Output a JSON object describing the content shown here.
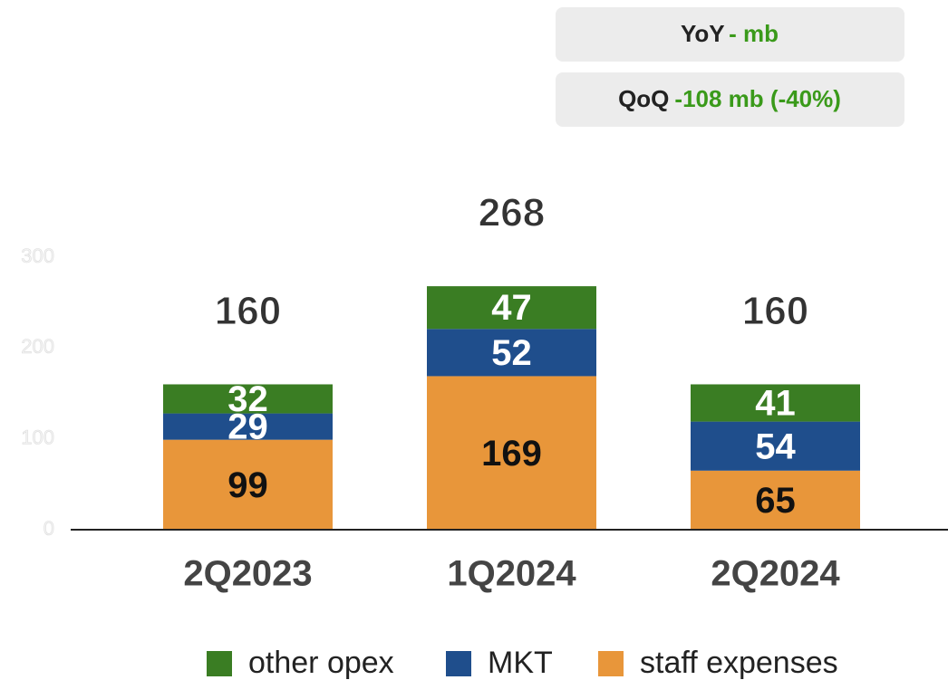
{
  "chart_data": {
    "type": "stacked_bar",
    "annotations": [
      {
        "label": "YoY",
        "text": "-  mb"
      },
      {
        "label": "QoQ",
        "text": "-108 mb (-40%)"
      }
    ],
    "categories": [
      "2Q2023",
      "1Q2024",
      "2Q2024"
    ],
    "series": [
      {
        "name": "staff expenses",
        "color": "#e8963a",
        "label_color": "#111111",
        "values": [
          99,
          169,
          65
        ]
      },
      {
        "name": "MKT",
        "color": "#1f4e8c",
        "label_color": "#ffffff",
        "values": [
          29,
          52,
          54
        ]
      },
      {
        "name": "other opex",
        "color": "#3a7d23",
        "label_color": "#ffffff",
        "values": [
          32,
          47,
          41
        ]
      }
    ],
    "totals": [
      160,
      268,
      160
    ],
    "ylim": [
      0,
      300
    ],
    "yticks": [
      0,
      100,
      200,
      300
    ],
    "grid": false,
    "legend": "bottom"
  }
}
